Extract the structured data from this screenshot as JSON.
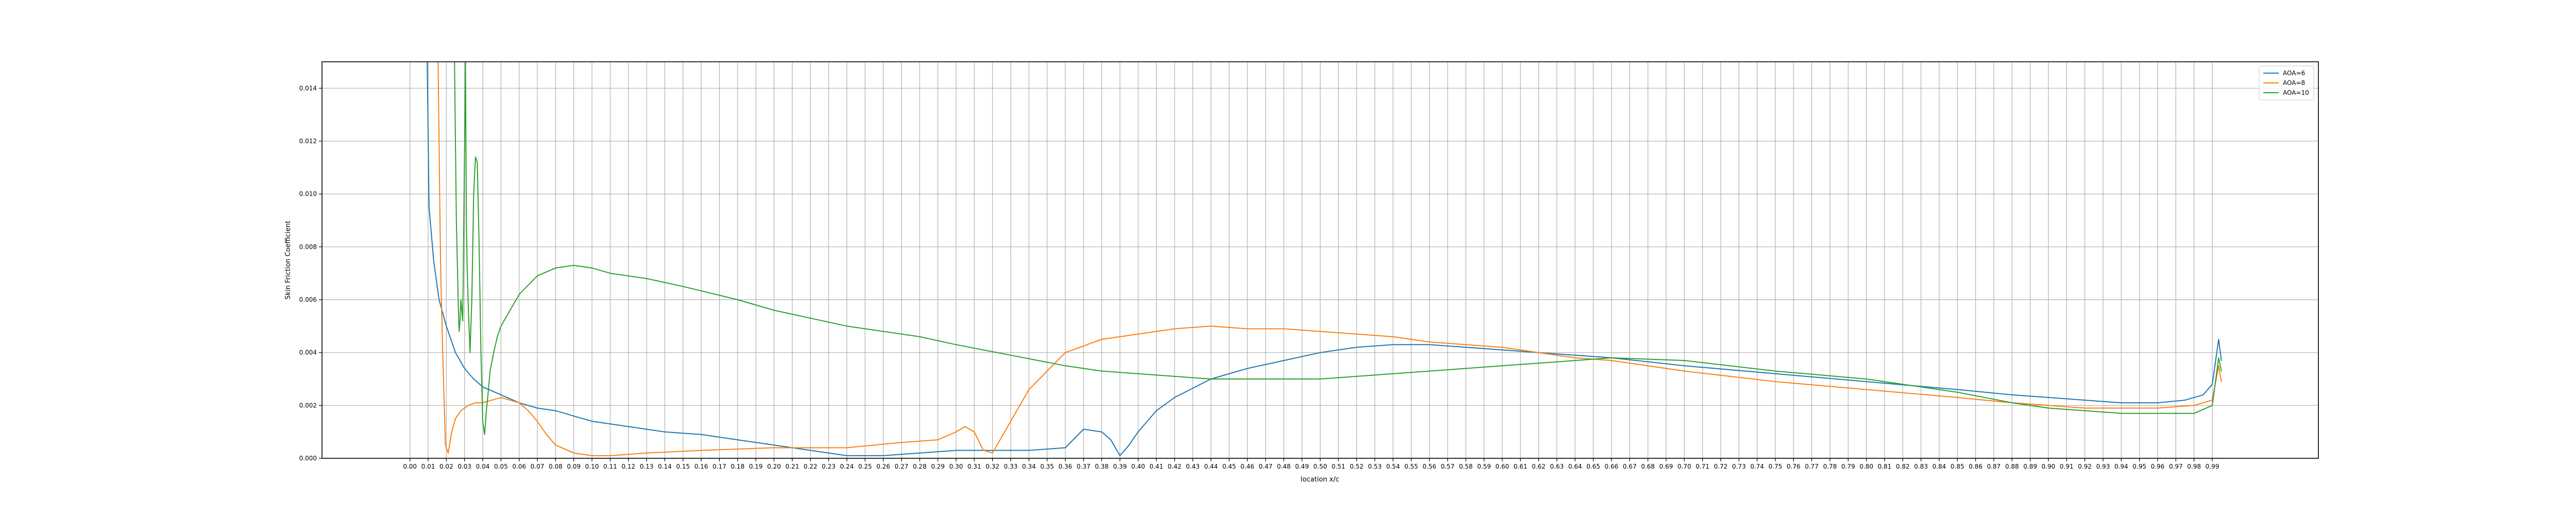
{
  "chart_data": {
    "type": "line",
    "title": "",
    "xlabel": "location x/c",
    "ylabel": "Skin Friction Coefficient",
    "xlim": [
      -0.0483,
      1.0483
    ],
    "ylim": [
      0.0,
      0.015
    ],
    "xticks": [
      0.0,
      0.01,
      0.02,
      0.03,
      0.04,
      0.05,
      0.06,
      0.07,
      0.08,
      0.09,
      0.1,
      0.11,
      0.12,
      0.13,
      0.14,
      0.15,
      0.16,
      0.17,
      0.18,
      0.19,
      0.2,
      0.21,
      0.22,
      0.23,
      0.24,
      0.25,
      0.26,
      0.27,
      0.28,
      0.29,
      0.3,
      0.31,
      0.32,
      0.33,
      0.34,
      0.35,
      0.36,
      0.37,
      0.38,
      0.39,
      0.4,
      0.41,
      0.42,
      0.43,
      0.44,
      0.45,
      0.46,
      0.47,
      0.48,
      0.49,
      0.5,
      0.51,
      0.52,
      0.53,
      0.54,
      0.55,
      0.56,
      0.57,
      0.58,
      0.59,
      0.6,
      0.61,
      0.62,
      0.63,
      0.64,
      0.65,
      0.66,
      0.67,
      0.68,
      0.69,
      0.7,
      0.71,
      0.72,
      0.73,
      0.74,
      0.75,
      0.76,
      0.77,
      0.78,
      0.79,
      0.8,
      0.81,
      0.82,
      0.83,
      0.84,
      0.85,
      0.86,
      0.87,
      0.88,
      0.89,
      0.9,
      0.91,
      0.92,
      0.93,
      0.94,
      0.95,
      0.96,
      0.97,
      0.98,
      0.99
    ],
    "yticks": [
      0.0,
      0.002,
      0.004,
      0.006,
      0.008,
      0.01,
      0.012,
      0.014
    ],
    "ytick_labels": [
      "0.000",
      "0.002",
      "0.004",
      "0.006",
      "0.008",
      "0.010",
      "0.012",
      "0.014"
    ],
    "grid": true,
    "legend_position": "top-right",
    "series": [
      {
        "name": "AOA=6",
        "color": "#1f77b4",
        "x": [
          0.0095,
          0.0105,
          0.013,
          0.016,
          0.02,
          0.025,
          0.03,
          0.035,
          0.04,
          0.05,
          0.06,
          0.07,
          0.08,
          0.09,
          0.1,
          0.12,
          0.14,
          0.16,
          0.18,
          0.2,
          0.22,
          0.24,
          0.26,
          0.28,
          0.3,
          0.32,
          0.34,
          0.36,
          0.37,
          0.38,
          0.385,
          0.39,
          0.395,
          0.4,
          0.41,
          0.42,
          0.44,
          0.46,
          0.48,
          0.5,
          0.52,
          0.54,
          0.56,
          0.58,
          0.6,
          0.62,
          0.64,
          0.66,
          0.7,
          0.75,
          0.8,
          0.85,
          0.88,
          0.9,
          0.92,
          0.94,
          0.96,
          0.975,
          0.985,
          0.99,
          0.9935,
          0.995
        ],
        "y": [
          0.015,
          0.0095,
          0.0075,
          0.006,
          0.005,
          0.004,
          0.0034,
          0.003,
          0.0027,
          0.0024,
          0.0021,
          0.0019,
          0.0018,
          0.0016,
          0.0014,
          0.0012,
          0.001,
          0.0009,
          0.0007,
          0.0005,
          0.0003,
          0.0001,
          0.0001,
          0.0002,
          0.0003,
          0.0003,
          0.0003,
          0.0004,
          0.0011,
          0.001,
          0.0007,
          0.0001,
          0.0005,
          0.001,
          0.0018,
          0.0023,
          0.003,
          0.0034,
          0.0037,
          0.004,
          0.0042,
          0.0043,
          0.0043,
          0.0042,
          0.0041,
          0.004,
          0.0039,
          0.0038,
          0.0035,
          0.0032,
          0.0029,
          0.0026,
          0.0024,
          0.0023,
          0.0022,
          0.0021,
          0.0021,
          0.0022,
          0.0024,
          0.0028,
          0.0045,
          0.0037
        ]
      },
      {
        "name": "AOA=8",
        "color": "#ff7f0e",
        "x": [
          0.0155,
          0.016,
          0.0165,
          0.017,
          0.018,
          0.0195,
          0.021,
          0.023,
          0.025,
          0.028,
          0.032,
          0.036,
          0.04,
          0.045,
          0.05,
          0.055,
          0.06,
          0.065,
          0.07,
          0.075,
          0.08,
          0.09,
          0.1,
          0.11,
          0.13,
          0.16,
          0.2,
          0.24,
          0.27,
          0.29,
          0.3,
          0.305,
          0.31,
          0.315,
          0.32,
          0.33,
          0.34,
          0.36,
          0.38,
          0.4,
          0.42,
          0.44,
          0.46,
          0.48,
          0.5,
          0.52,
          0.54,
          0.56,
          0.58,
          0.6,
          0.62,
          0.64,
          0.66,
          0.7,
          0.75,
          0.8,
          0.85,
          0.88,
          0.9,
          0.92,
          0.94,
          0.96,
          0.98,
          0.99,
          0.9935,
          0.995
        ],
        "y": [
          0.015,
          0.012,
          0.009,
          0.0068,
          0.004,
          0.0005,
          0.0002,
          0.001,
          0.0015,
          0.0018,
          0.002,
          0.0021,
          0.0021,
          0.0022,
          0.0023,
          0.0022,
          0.0021,
          0.0018,
          0.0014,
          0.0009,
          0.0005,
          0.0002,
          0.0001,
          0.0001,
          0.0002,
          0.0003,
          0.0004,
          0.0004,
          0.0006,
          0.0007,
          0.001,
          0.0012,
          0.001,
          0.0003,
          0.0002,
          0.0014,
          0.0026,
          0.004,
          0.0045,
          0.0047,
          0.0049,
          0.005,
          0.0049,
          0.0049,
          0.0048,
          0.0047,
          0.0046,
          0.0044,
          0.0043,
          0.0042,
          0.004,
          0.0038,
          0.0037,
          0.0033,
          0.0029,
          0.0026,
          0.0023,
          0.0021,
          0.002,
          0.0019,
          0.0019,
          0.0019,
          0.002,
          0.0022,
          0.0035,
          0.0029
        ]
      },
      {
        "name": "AOA=10",
        "color": "#2ca02c",
        "x": [
          0.0245,
          0.0255,
          0.0265,
          0.027,
          0.0275,
          0.028,
          0.029,
          0.0305,
          0.031,
          0.0315,
          0.032,
          0.033,
          0.034,
          0.035,
          0.036,
          0.037,
          0.038,
          0.039,
          0.04,
          0.041,
          0.042,
          0.043,
          0.044,
          0.046,
          0.048,
          0.05,
          0.06,
          0.07,
          0.08,
          0.09,
          0.1,
          0.11,
          0.13,
          0.15,
          0.18,
          0.2,
          0.24,
          0.28,
          0.3,
          0.33,
          0.36,
          0.38,
          0.4,
          0.42,
          0.44,
          0.46,
          0.48,
          0.5,
          0.52,
          0.54,
          0.56,
          0.58,
          0.6,
          0.62,
          0.64,
          0.66,
          0.7,
          0.75,
          0.8,
          0.85,
          0.88,
          0.9,
          0.92,
          0.94,
          0.96,
          0.98,
          0.99,
          0.9935,
          0.995
        ],
        "y": [
          0.015,
          0.009,
          0.006,
          0.0048,
          0.0052,
          0.006,
          0.0052,
          0.015,
          0.009,
          0.007,
          0.0058,
          0.004,
          0.006,
          0.01,
          0.0114,
          0.0112,
          0.008,
          0.004,
          0.0014,
          0.0009,
          0.0018,
          0.0025,
          0.0033,
          0.004,
          0.0046,
          0.005,
          0.0062,
          0.0069,
          0.0072,
          0.0073,
          0.0072,
          0.007,
          0.0068,
          0.0065,
          0.006,
          0.0056,
          0.005,
          0.0046,
          0.0043,
          0.0039,
          0.0035,
          0.0033,
          0.0032,
          0.0031,
          0.003,
          0.003,
          0.003,
          0.003,
          0.0031,
          0.0032,
          0.0033,
          0.0034,
          0.0035,
          0.0036,
          0.0037,
          0.0038,
          0.0037,
          0.0033,
          0.003,
          0.0025,
          0.0021,
          0.0019,
          0.0018,
          0.0017,
          0.0017,
          0.0017,
          0.002,
          0.0038,
          0.0033
        ]
      }
    ]
  }
}
